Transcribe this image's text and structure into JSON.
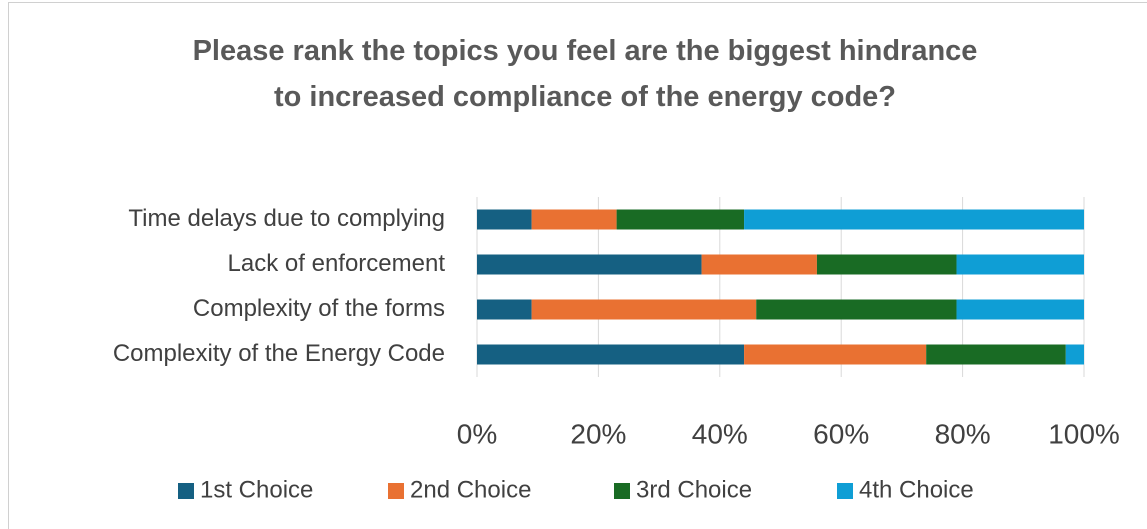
{
  "chart_data": {
    "type": "stacked-bar-horizontal",
    "title": "Please rank the topics you feel are the biggest hindrance to increased compliance of the energy code?",
    "categories": [
      "Complexity of the Energy Code",
      "Complexity of the forms",
      "Lack of enforcement",
      "Time delays due to complying"
    ],
    "series": [
      {
        "name": "1st Choice",
        "color": "#156082",
        "values": [
          44,
          9,
          37,
          9
        ]
      },
      {
        "name": "2nd Choice",
        "color": "#e97132",
        "values": [
          30,
          37,
          19,
          14
        ]
      },
      {
        "name": "3rd Choice",
        "color": "#196b24",
        "values": [
          23,
          33,
          23,
          21
        ]
      },
      {
        "name": "4th Choice",
        "color": "#0f9ed5",
        "values": [
          3,
          21,
          21,
          56
        ]
      }
    ],
    "xlim": [
      0,
      100
    ],
    "xticks": [
      {
        "value": 0,
        "label": "0%"
      },
      {
        "value": 20,
        "label": "20%"
      },
      {
        "value": 40,
        "label": "40%"
      },
      {
        "value": 60,
        "label": "60%"
      },
      {
        "value": 80,
        "label": "80%"
      },
      {
        "value": 100,
        "label": "100%"
      }
    ],
    "grid": true,
    "legend": "bottom"
  }
}
